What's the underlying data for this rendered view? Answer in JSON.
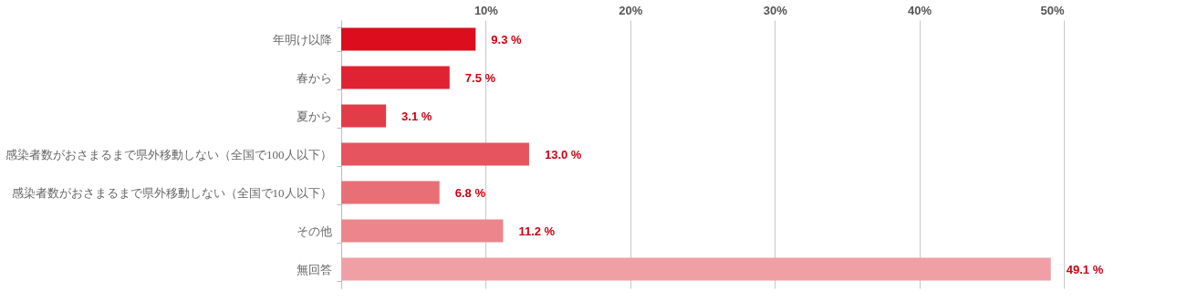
{
  "chart_data": {
    "type": "bar",
    "orientation": "horizontal",
    "categories": [
      "年明け以降",
      "春から",
      "夏から",
      "感染者数がおさまるまで県外移動しない（全国で100人以下）",
      "感染者数がおさまるまで県外移動しない（全国で10人以下）",
      "その他",
      "無回答"
    ],
    "values": [
      9.3,
      7.5,
      3.1,
      13.0,
      6.8,
      11.2,
      49.1
    ],
    "colors": [
      "#dc0d1d",
      "#e02332",
      "#e33c49",
      "#e5545f",
      "#e96f77",
      "#ec868c",
      "#f0a0a5"
    ],
    "value_labels": [
      "9.3 %",
      "7.5 %",
      "3.1 %",
      "13.0 %",
      "6.8 %",
      "11.2 %",
      "49.1 %"
    ],
    "xlim": [
      0,
      50
    ],
    "xticks": [
      {
        "value": 0,
        "label": null
      },
      {
        "value": 10,
        "label": "10%"
      },
      {
        "value": 20,
        "label": "20%"
      },
      {
        "value": 30,
        "label": "30%"
      },
      {
        "value": 40,
        "label": "40%"
      },
      {
        "value": 50,
        "label": "50%"
      }
    ],
    "grid": "x"
  }
}
